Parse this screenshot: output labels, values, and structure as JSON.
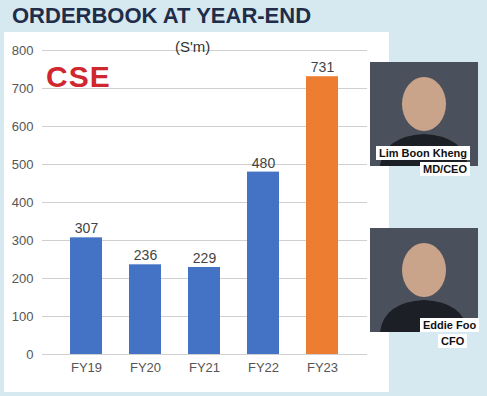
{
  "chart_data": {
    "type": "bar",
    "title": "ORDERBOOK AT YEAR-END",
    "subtitle": "(S'm)",
    "categories": [
      "FY19",
      "FY20",
      "FY21",
      "FY22",
      "FY23"
    ],
    "values": [
      307,
      236,
      229,
      480,
      731
    ],
    "colors": [
      "#4472c4",
      "#4472c4",
      "#4472c4",
      "#4472c4",
      "#ed7d31"
    ],
    "ylim": [
      0,
      800
    ],
    "yticks": [
      0,
      100,
      200,
      300,
      400,
      500,
      600,
      700,
      800
    ],
    "grid": true,
    "data_labels": true,
    "annotations": [
      "CSE",
      "Lim Boon Kheng",
      "MD/CEO",
      "Eddie Foo",
      "CFO"
    ]
  }
}
